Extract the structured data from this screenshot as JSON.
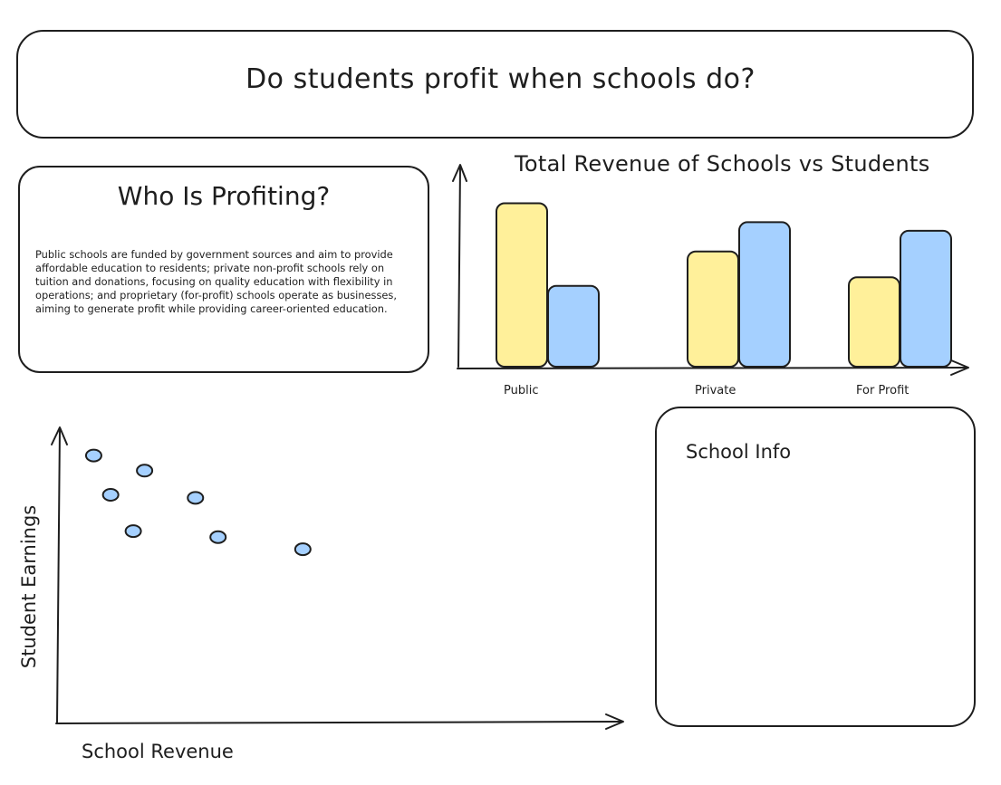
{
  "header": {
    "title": "Do students profit when schools do?"
  },
  "who_panel": {
    "heading": "Who Is Profiting?",
    "body": "Public schools are funded by government sources and aim to provide affordable education to residents; private non-profit schools rely on tuition and donations, focusing on quality education with flexibility in operations; and proprietary (for-profit) schools operate as businesses, aiming to generate profit while providing career-oriented education."
  },
  "info_panel": {
    "title": "School Info"
  },
  "bar_chart_title": "Total Revenue of Schools vs Students",
  "scatter_labels": {
    "ylabel": "Student Earnings",
    "xlabel": "School Revenue"
  },
  "colors": {
    "schools": "#fff09a",
    "students": "#a5d0ff",
    "stroke": "#1e1e1e"
  },
  "chart_data": [
    {
      "type": "bar",
      "title": "Total Revenue of Schools vs Students",
      "categories": [
        "Public",
        "Private",
        "For Profit"
      ],
      "series": [
        {
          "values": [
            95,
            67,
            52
          ],
          "color": "#fff09a"
        },
        {
          "values": [
            47,
            84,
            79
          ],
          "color": "#a5d0ff"
        }
      ],
      "ylim": [
        0,
        100
      ],
      "xlabel": "",
      "ylabel": ""
    },
    {
      "type": "scatter",
      "xlabel": "School Revenue",
      "ylabel": "Student Earnings",
      "points": [
        {
          "x": 6,
          "y": 88
        },
        {
          "x": 15,
          "y": 83
        },
        {
          "x": 9,
          "y": 75
        },
        {
          "x": 24,
          "y": 74
        },
        {
          "x": 13,
          "y": 63
        },
        {
          "x": 28,
          "y": 61
        },
        {
          "x": 43,
          "y": 57
        }
      ],
      "xlim": [
        0,
        100
      ],
      "ylim": [
        0,
        100
      ]
    }
  ]
}
